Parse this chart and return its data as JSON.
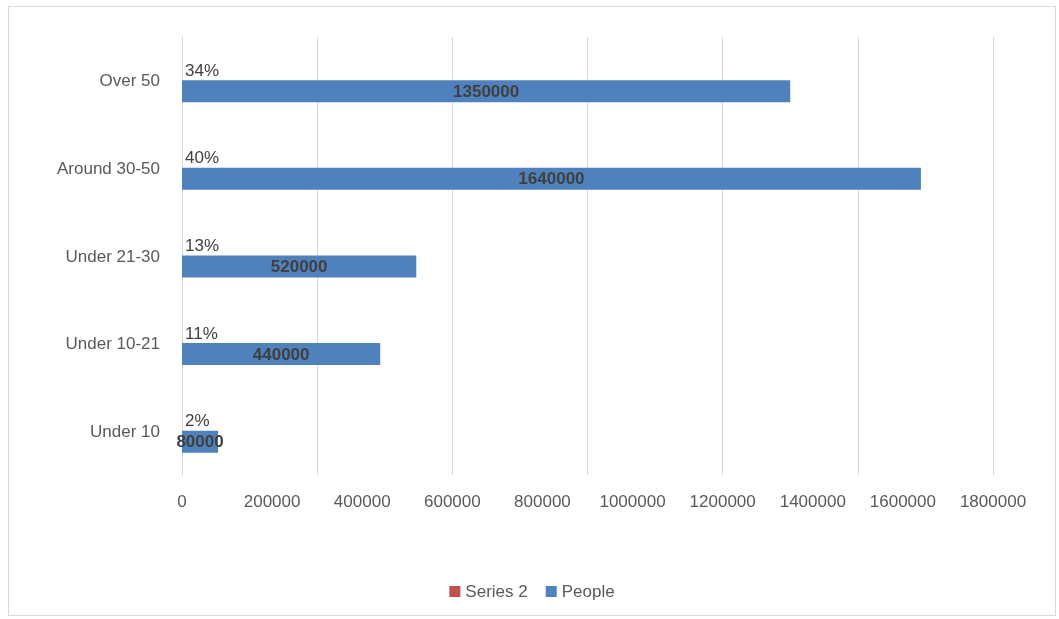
{
  "chart_data": {
    "type": "bar",
    "orientation": "horizontal",
    "categories": [
      "Over 50",
      "Around 30-50",
      "Under 21-30",
      "Under 10-21",
      "Under 10"
    ],
    "series": [
      {
        "name": "Series 2",
        "color": "#c0504d",
        "values": [
          34,
          40,
          13,
          11,
          2
        ],
        "value_labels": [
          "34%",
          "40%",
          "13%",
          "11%",
          "2%"
        ]
      },
      {
        "name": "People",
        "color": "#4f81bd",
        "values": [
          1350000,
          1640000,
          520000,
          440000,
          80000
        ],
        "value_labels": [
          "1350000",
          "1640000",
          "520000",
          "440000",
          "80000"
        ]
      }
    ],
    "xlim": [
      0,
      1800000
    ],
    "xticks": [
      0,
      200000,
      400000,
      600000,
      800000,
      1000000,
      1200000,
      1400000,
      1600000,
      1800000
    ],
    "grid": "x",
    "legend": "bottom"
  }
}
